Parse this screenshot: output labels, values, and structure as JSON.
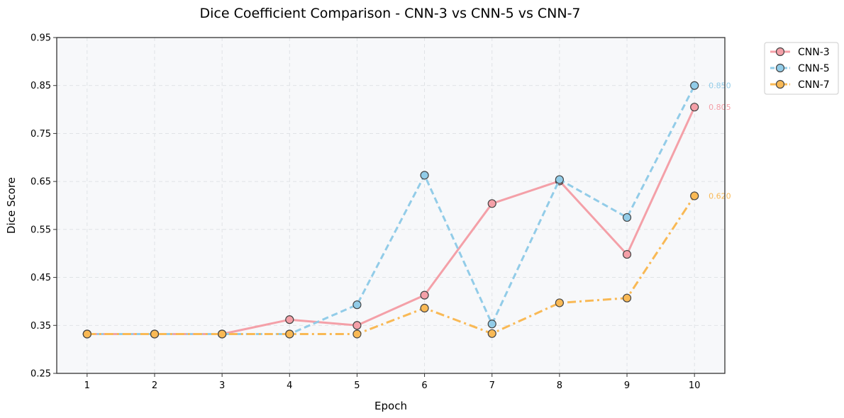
{
  "chart_data": {
    "type": "line",
    "title": "Dice Coefficient Comparison - CNN-3 vs CNN-5 vs CNN-7",
    "xlabel": "Epoch",
    "ylabel": "Dice Score",
    "x": [
      1,
      2,
      3,
      4,
      5,
      6,
      7,
      8,
      9,
      10
    ],
    "xlim": [
      0.55,
      10.45
    ],
    "ylim": [
      0.25,
      0.95
    ],
    "yticks": [
      "0.25",
      "0.35",
      "0.45",
      "0.55",
      "0.65",
      "0.75",
      "0.85",
      "0.95"
    ],
    "grid": true,
    "legend_position": "outside-top-right",
    "series": [
      {
        "name": "CNN-3",
        "color": "#f4a0a8",
        "style": "solid",
        "values": [
          0.332,
          0.332,
          0.332,
          0.362,
          0.35,
          0.413,
          0.604,
          0.651,
          0.498,
          0.805
        ],
        "end_label": "0.805"
      },
      {
        "name": "CNN-5",
        "color": "#92cce8",
        "style": "dashed",
        "values": [
          0.332,
          0.332,
          0.332,
          0.332,
          0.393,
          0.663,
          0.353,
          0.654,
          0.575,
          0.85
        ],
        "end_label": "0.850"
      },
      {
        "name": "CNN-7",
        "color": "#f9b955",
        "style": "dashdot",
        "values": [
          0.332,
          0.332,
          0.332,
          0.332,
          0.332,
          0.386,
          0.333,
          0.397,
          0.407,
          0.62
        ],
        "end_label": "0.620"
      }
    ]
  }
}
